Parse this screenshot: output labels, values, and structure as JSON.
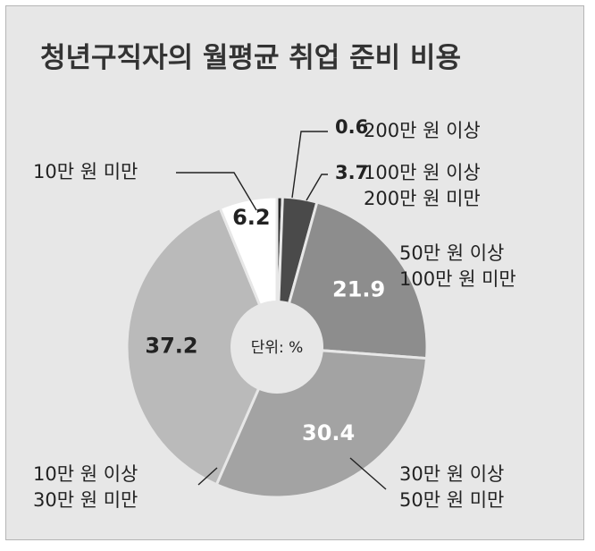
{
  "title": "청년구직자의 월평균 취업 준비 비용",
  "unit_label": "단위: %",
  "colors": {
    "background": "#e7e7e7",
    "slice_over_200": "#2c2c2c",
    "slice_100_200": "#4a4a4a",
    "slice_50_100": "#8d8d8d",
    "slice_30_50": "#a3a3a3",
    "slice_10_30": "#bababa",
    "slice_under_10": "#ffffff",
    "center": "#e7e7e7"
  },
  "chart_data": {
    "type": "pie",
    "title": "청년구직자의 월평균 취업 준비 비용",
    "unit": "%",
    "slices": [
      {
        "value": 0.6,
        "value_label": "0.6",
        "category_lines": [
          "200만 원 이상"
        ],
        "color": "#2c2c2c",
        "label_color": "#ffffff"
      },
      {
        "value": 3.7,
        "value_label": "3.7",
        "category_lines": [
          "100만 원 이상",
          "200만 원 미만"
        ],
        "color": "#4a4a4a",
        "label_color": "#ffffff"
      },
      {
        "value": 21.9,
        "value_label": "21.9",
        "category_lines": [
          "50만 원 이상",
          "100만 원 미만"
        ],
        "color": "#8d8d8d",
        "label_color": "#ffffff"
      },
      {
        "value": 30.4,
        "value_label": "30.4",
        "category_lines": [
          "30만 원 이상",
          "50만 원 미만"
        ],
        "color": "#a3a3a3",
        "label_color": "#ffffff"
      },
      {
        "value": 37.2,
        "value_label": "37.2",
        "category_lines": [
          "10만 원 이상",
          "30만 원 미만"
        ],
        "color": "#bababa",
        "label_color": "#222222"
      },
      {
        "value": 6.2,
        "value_label": "6.2",
        "category_lines": [
          "10만 원 미만"
        ],
        "color": "#ffffff",
        "label_color": "#222222"
      }
    ]
  }
}
